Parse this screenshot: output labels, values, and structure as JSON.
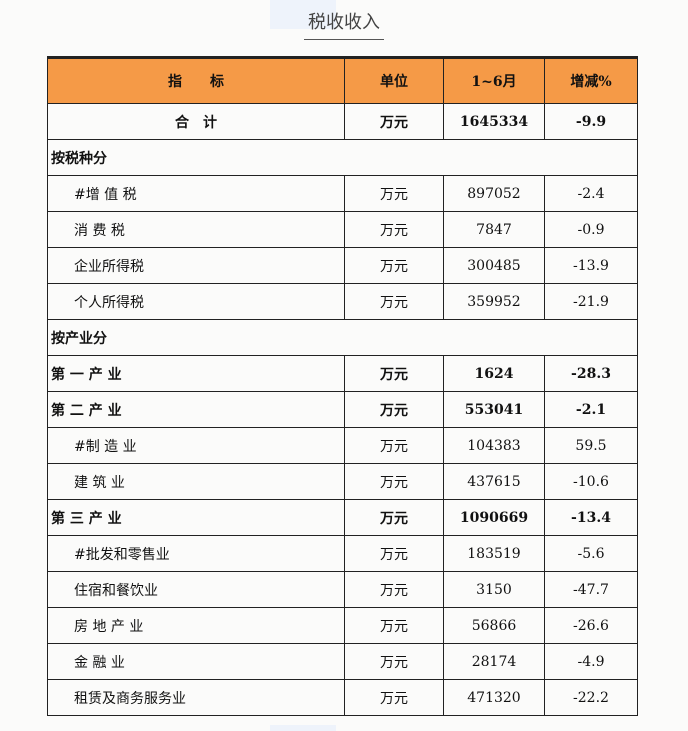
{
  "title": "税收收入",
  "header": {
    "indicator": "指　　标",
    "unit": "单位",
    "period": "1~6月",
    "change": "增减%"
  },
  "rows": [
    {
      "type": "total",
      "name": "合　计",
      "unit": "万元",
      "value": "1645334",
      "change": "-9.9"
    },
    {
      "type": "section",
      "name": "按税种分"
    },
    {
      "type": "item",
      "name": "#增 值 税",
      "unit": "万元",
      "value": "897052",
      "change": "-2.4"
    },
    {
      "type": "item",
      "name": "消 费 税",
      "unit": "万元",
      "value": "7847",
      "change": "-0.9"
    },
    {
      "type": "item",
      "name": "企业所得税",
      "unit": "万元",
      "value": "300485",
      "change": "-13.9"
    },
    {
      "type": "item",
      "name": "个人所得税",
      "unit": "万元",
      "value": "359952",
      "change": "-21.9"
    },
    {
      "type": "section",
      "name": "按产业分"
    },
    {
      "type": "bold",
      "name": "第 一 产 业",
      "unit": "万元",
      "value": "1624",
      "change": "-28.3"
    },
    {
      "type": "bold",
      "name": "第 二 产 业",
      "unit": "万元",
      "value": "553041",
      "change": "-2.1"
    },
    {
      "type": "item",
      "name": "#制 造 业",
      "unit": "万元",
      "value": "104383",
      "change": "59.5"
    },
    {
      "type": "item",
      "name": "建 筑 业",
      "unit": "万元",
      "value": "437615",
      "change": "-10.6"
    },
    {
      "type": "bold",
      "name": "第 三 产 业",
      "unit": "万元",
      "value": "1090669",
      "change": "-13.4"
    },
    {
      "type": "item",
      "name": "#批发和零售业",
      "unit": "万元",
      "value": "183519",
      "change": "-5.6"
    },
    {
      "type": "item",
      "name": "住宿和餐饮业",
      "unit": "万元",
      "value": "3150",
      "change": "-47.7"
    },
    {
      "type": "item",
      "name": "房 地 产 业",
      "unit": "万元",
      "value": "56866",
      "change": "-26.6"
    },
    {
      "type": "item",
      "name": "金 融 业",
      "unit": "万元",
      "value": "28174",
      "change": "-4.9"
    },
    {
      "type": "item",
      "name": "租赁及商务服务业",
      "unit": "万元",
      "value": "471320",
      "change": "-22.2"
    }
  ]
}
